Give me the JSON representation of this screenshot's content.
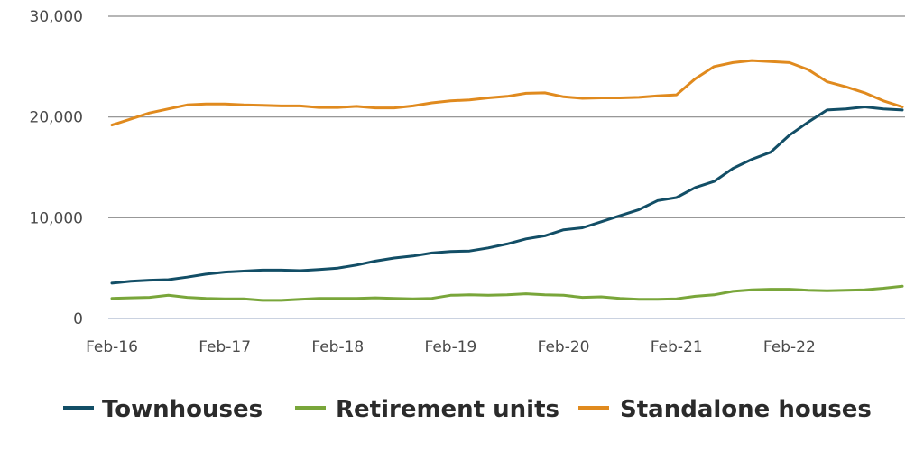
{
  "chart_data": {
    "type": "line",
    "title": "",
    "xlabel": "",
    "ylabel": "",
    "ylim": [
      0,
      30000
    ],
    "yticks": [
      0,
      10000,
      20000,
      30000
    ],
    "ytick_labels": [
      "0",
      "10,000",
      "20,000",
      "30,000"
    ],
    "xticks": [
      "Feb-16",
      "Feb-17",
      "Feb-18",
      "Feb-19",
      "Feb-20",
      "Feb-21",
      "Feb-22"
    ],
    "grid": "horizontal",
    "legend_position": "bottom",
    "x": [
      "Feb-16",
      "Apr-16",
      "Jun-16",
      "Aug-16",
      "Oct-16",
      "Dec-16",
      "Feb-17",
      "Apr-17",
      "Jun-17",
      "Aug-17",
      "Oct-17",
      "Dec-17",
      "Feb-18",
      "Apr-18",
      "Jun-18",
      "Aug-18",
      "Oct-18",
      "Dec-18",
      "Feb-19",
      "Apr-19",
      "Jun-19",
      "Aug-19",
      "Oct-19",
      "Dec-19",
      "Feb-20",
      "Apr-20",
      "Jun-20",
      "Aug-20",
      "Oct-20",
      "Dec-20",
      "Feb-21",
      "Apr-21",
      "Jun-21",
      "Aug-21",
      "Oct-21",
      "Dec-21",
      "Feb-22",
      "Apr-22",
      "Jun-22",
      "Aug-22",
      "Oct-22",
      "Dec-22",
      "Jan-23"
    ],
    "series": [
      {
        "name": "Townhouses",
        "color": "#124e66",
        "values": [
          3500,
          3700,
          3800,
          3850,
          4100,
          4400,
          4600,
          4700,
          4800,
          4800,
          4750,
          4850,
          5000,
          5300,
          5700,
          6000,
          6200,
          6500,
          6650,
          6700,
          7000,
          7400,
          7900,
          8200,
          8800,
          9000,
          9600,
          10200,
          10800,
          11700,
          12000,
          13000,
          13600,
          14900,
          15800,
          16500,
          18200,
          19500,
          20700,
          20800,
          21000,
          20800,
          20700
        ]
      },
      {
        "name": "Retirement units",
        "color": "#79a63a",
        "values": [
          2000,
          2050,
          2100,
          2300,
          2100,
          2000,
          1950,
          1950,
          1800,
          1800,
          1900,
          2000,
          2000,
          2000,
          2050,
          2000,
          1950,
          2000,
          2300,
          2350,
          2300,
          2350,
          2450,
          2350,
          2300,
          2100,
          2150,
          2000,
          1900,
          1900,
          1950,
          2200,
          2350,
          2700,
          2850,
          2900,
          2900,
          2800,
          2750,
          2800,
          2850,
          3000,
          3200
        ]
      },
      {
        "name": "Standalone houses",
        "color": "#e08a1e",
        "values": [
          19200,
          19800,
          20400,
          20800,
          21200,
          21300,
          21300,
          21200,
          21150,
          21100,
          21100,
          20950,
          20950,
          21050,
          20900,
          20900,
          21100,
          21400,
          21600,
          21700,
          21900,
          22050,
          22350,
          22400,
          22000,
          21850,
          21900,
          21900,
          21950,
          22100,
          22200,
          23800,
          25000,
          25400,
          25600,
          25500,
          25400,
          24700,
          23500,
          23000,
          22400,
          21600,
          21000
        ]
      }
    ]
  }
}
